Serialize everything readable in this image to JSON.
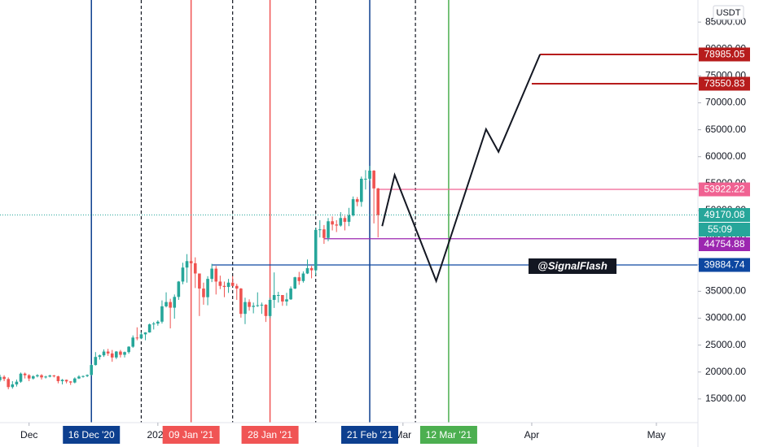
{
  "chart_data": {
    "type": "candlestick",
    "currency": "USDT",
    "x": [
      "2020-11-24",
      "2020-11-25",
      "2020-11-26",
      "2020-11-27",
      "2020-11-28",
      "2020-11-29",
      "2020-11-30",
      "2020-12-01",
      "2020-12-02",
      "2020-12-03",
      "2020-12-04",
      "2020-12-05",
      "2020-12-06",
      "2020-12-07",
      "2020-12-08",
      "2020-12-09",
      "2020-12-10",
      "2020-12-11",
      "2020-12-12",
      "2020-12-13",
      "2020-12-14",
      "2020-12-15",
      "2020-12-16",
      "2020-12-17",
      "2020-12-18",
      "2020-12-19",
      "2020-12-20",
      "2020-12-21",
      "2020-12-22",
      "2020-12-23",
      "2020-12-24",
      "2020-12-25",
      "2020-12-26",
      "2020-12-27",
      "2020-12-28",
      "2020-12-29",
      "2020-12-30",
      "2020-12-31",
      "2021-01-01",
      "2021-01-02",
      "2021-01-03",
      "2021-01-04",
      "2021-01-05",
      "2021-01-06",
      "2021-01-07",
      "2021-01-08",
      "2021-01-09",
      "2021-01-10",
      "2021-01-11",
      "2021-01-12",
      "2021-01-13",
      "2021-01-14",
      "2021-01-15",
      "2021-01-16",
      "2021-01-17",
      "2021-01-18",
      "2021-01-19",
      "2021-01-20",
      "2021-01-21",
      "2021-01-22",
      "2021-01-23",
      "2021-01-24",
      "2021-01-25",
      "2021-01-26",
      "2021-01-27",
      "2021-01-28",
      "2021-01-29",
      "2021-01-30",
      "2021-01-31",
      "2021-02-01",
      "2021-02-02",
      "2021-02-03",
      "2021-02-04",
      "2021-02-05",
      "2021-02-06",
      "2021-02-07",
      "2021-02-08",
      "2021-02-09",
      "2021-02-10",
      "2021-02-11",
      "2021-02-12",
      "2021-02-13",
      "2021-02-14",
      "2021-02-15",
      "2021-02-16",
      "2021-02-17",
      "2021-02-18",
      "2021-02-19",
      "2021-02-20",
      "2021-02-21",
      "2021-02-22",
      "2021-02-23"
    ],
    "open": [
      18500,
      19100,
      18700,
      17200,
      17700,
      18200,
      19700,
      19400,
      18800,
      19200,
      19400,
      19000,
      19150,
      19350,
      19200,
      18300,
      18550,
      18250,
      18050,
      18800,
      19150,
      19250,
      19450,
      21300,
      22800,
      23100,
      23800,
      23450,
      22700,
      23800,
      23200,
      23700,
      24700,
      26400,
      26250,
      27000,
      27350,
      28850,
      29000,
      29350,
      32200,
      33000,
      31950,
      33950,
      36800,
      39400,
      40600,
      40200,
      38300,
      35500,
      33900,
      37300,
      39200,
      36800,
      36000,
      35800,
      36600,
      36000,
      35500,
      30800,
      33000,
      32100,
      32300,
      32400,
      32500,
      30400,
      33400,
      34300,
      34300,
      33100,
      33500,
      35500,
      37600,
      36900,
      38300,
      39300,
      38900,
      46400,
      46500,
      44900,
      48000,
      47400,
      47200,
      48600,
      47900,
      49100,
      52100,
      51600,
      55900,
      55900,
      57400,
      54100
    ],
    "high": [
      19500,
      19400,
      19000,
      18300,
      18600,
      19900,
      19900,
      19600,
      19400,
      19600,
      19600,
      19300,
      19500,
      19450,
      19300,
      18700,
      18600,
      18300,
      19000,
      19400,
      19350,
      19550,
      21500,
      23700,
      23250,
      24200,
      24300,
      24100,
      23900,
      24100,
      23800,
      24800,
      26800,
      28300,
      27400,
      27400,
      29000,
      29300,
      29600,
      33300,
      34800,
      33600,
      34400,
      36900,
      40300,
      41900,
      41300,
      41300,
      38300,
      36600,
      37800,
      40100,
      39700,
      37900,
      36800,
      37300,
      37800,
      36400,
      35600,
      33800,
      33500,
      32900,
      34800,
      32900,
      32600,
      33800,
      38500,
      34900,
      34300,
      34700,
      35900,
      37700,
      38600,
      38700,
      40900,
      39700,
      46800,
      48200,
      47300,
      48600,
      48900,
      48200,
      49700,
      49000,
      50500,
      52600,
      52500,
      56300,
      57500,
      58300,
      57500,
      54200
    ],
    "low": [
      18200,
      18300,
      16800,
      16900,
      17300,
      18000,
      18800,
      18300,
      18600,
      19000,
      18600,
      18800,
      19000,
      19000,
      17900,
      17700,
      17900,
      17600,
      17900,
      18700,
      18950,
      19050,
      19300,
      21200,
      22300,
      22800,
      23000,
      21900,
      22400,
      22700,
      22700,
      23400,
      24500,
      25900,
      26100,
      25900,
      27300,
      27900,
      28600,
      29000,
      32000,
      28100,
      29900,
      33400,
      36300,
      36600,
      38700,
      35600,
      30400,
      32500,
      32400,
      36700,
      34400,
      35400,
      33900,
      34700,
      35900,
      33400,
      30100,
      28900,
      31400,
      30900,
      32100,
      30800,
      29300,
      30000,
      31900,
      32900,
      32300,
      32300,
      33400,
      35400,
      36200,
      36600,
      38200,
      37400,
      38000,
      45000,
      43800,
      44300,
      46300,
      46000,
      47000,
      46300,
      47100,
      48900,
      50800,
      50700,
      53900,
      55500,
      47600,
      45000
    ],
    "close": [
      19100,
      18700,
      17200,
      17700,
      18200,
      19700,
      19400,
      18800,
      19200,
      19400,
      19000,
      19150,
      19350,
      19200,
      18300,
      18550,
      18250,
      18050,
      18800,
      19150,
      19250,
      19450,
      21300,
      22800,
      23100,
      23800,
      23450,
      22700,
      23800,
      23200,
      23700,
      24700,
      26400,
      26250,
      27000,
      27350,
      28850,
      29000,
      29350,
      32200,
      33000,
      31950,
      33950,
      36800,
      39400,
      40600,
      40200,
      38300,
      35500,
      33900,
      37300,
      39200,
      36800,
      36000,
      35800,
      36600,
      36000,
      35500,
      30800,
      33000,
      32100,
      32300,
      32400,
      32500,
      30400,
      33400,
      34300,
      34300,
      33100,
      33500,
      35500,
      37600,
      36900,
      38300,
      39300,
      38900,
      46400,
      46500,
      44900,
      48000,
      47400,
      47200,
      48600,
      47900,
      49100,
      52100,
      51600,
      55900,
      55900,
      57400,
      54100,
      49170.08
    ],
    "up_color": "#26a69a",
    "down_color": "#ef5350",
    "countdown": "55:09",
    "xlim": [
      "2020-11-24",
      "2021-05-11"
    ],
    "xticks": [
      {
        "value": "2020-12-01",
        "label": "Dec"
      },
      {
        "value": "2021-01-01",
        "label": "2021"
      },
      {
        "value": "2021-03-01",
        "label": "Mar"
      },
      {
        "value": "2021-04-01",
        "label": "Apr"
      },
      {
        "value": "2021-05-01",
        "label": "May"
      }
    ],
    "ylim": [
      10600,
      89100
    ],
    "yticks": [
      {
        "value": 15000,
        "label": "15000.00"
      },
      {
        "value": 20000,
        "label": "20000.00"
      },
      {
        "value": 25000,
        "label": "25000.00"
      },
      {
        "value": 30000,
        "label": "30000.00"
      },
      {
        "value": 35000,
        "label": "35000.00"
      },
      {
        "value": 40000,
        "label": "40000.00"
      },
      {
        "value": 45000,
        "label": "45000.00"
      },
      {
        "value": 50000,
        "label": "50000.00"
      },
      {
        "value": 55000,
        "label": "55000.00"
      },
      {
        "value": 60000,
        "label": "60000.00"
      },
      {
        "value": 65000,
        "label": "65000.00"
      },
      {
        "value": 70000,
        "label": "70000.00"
      },
      {
        "value": 75000,
        "label": "75000.00"
      },
      {
        "value": 80000,
        "label": "80000.00"
      },
      {
        "value": 85000,
        "label": "85000.00"
      }
    ],
    "vlines": [
      {
        "x": "2020-12-16",
        "label": "16 Dec '20",
        "color": "#0d3f8f"
      },
      {
        "x": "2021-01-09",
        "label": "09 Jan '21",
        "color": "#f05454"
      },
      {
        "x": "2021-01-28",
        "label": "28 Jan '21",
        "color": "#f05454"
      },
      {
        "x": "2021-02-21",
        "label": "21 Feb '21",
        "color": "#0d3f8f"
      },
      {
        "x": "2021-03-12",
        "label": "12 Mar '21",
        "color": "#4caf50"
      }
    ],
    "dashed_vlines": [
      "2020-12-28",
      "2021-01-19",
      "2021-02-08",
      "2021-03-04"
    ],
    "levels": [
      {
        "value": 78985.05,
        "start": "2021-04-03",
        "color": "#b71c1c"
      },
      {
        "value": 73550.83,
        "start": "2021-04-01",
        "color": "#b71c1c"
      },
      {
        "value": 53922.22,
        "start": "2021-02-23",
        "color": "#f06292"
      },
      {
        "value": 44754.88,
        "start": "2021-02-10",
        "color": "#9c27b0"
      },
      {
        "value": 39884.74,
        "start": "2021-01-14",
        "color": "#0d47a1"
      }
    ],
    "projection": {
      "x": [
        "2021-02-24",
        "2021-02-27",
        "2021-03-09",
        "2021-03-21",
        "2021-03-24",
        "2021-04-03"
      ],
      "values": [
        47100,
        56600,
        36900,
        65100,
        60900,
        79000
      ],
      "color": "#131722"
    },
    "watermark": "@SignalFlash"
  }
}
